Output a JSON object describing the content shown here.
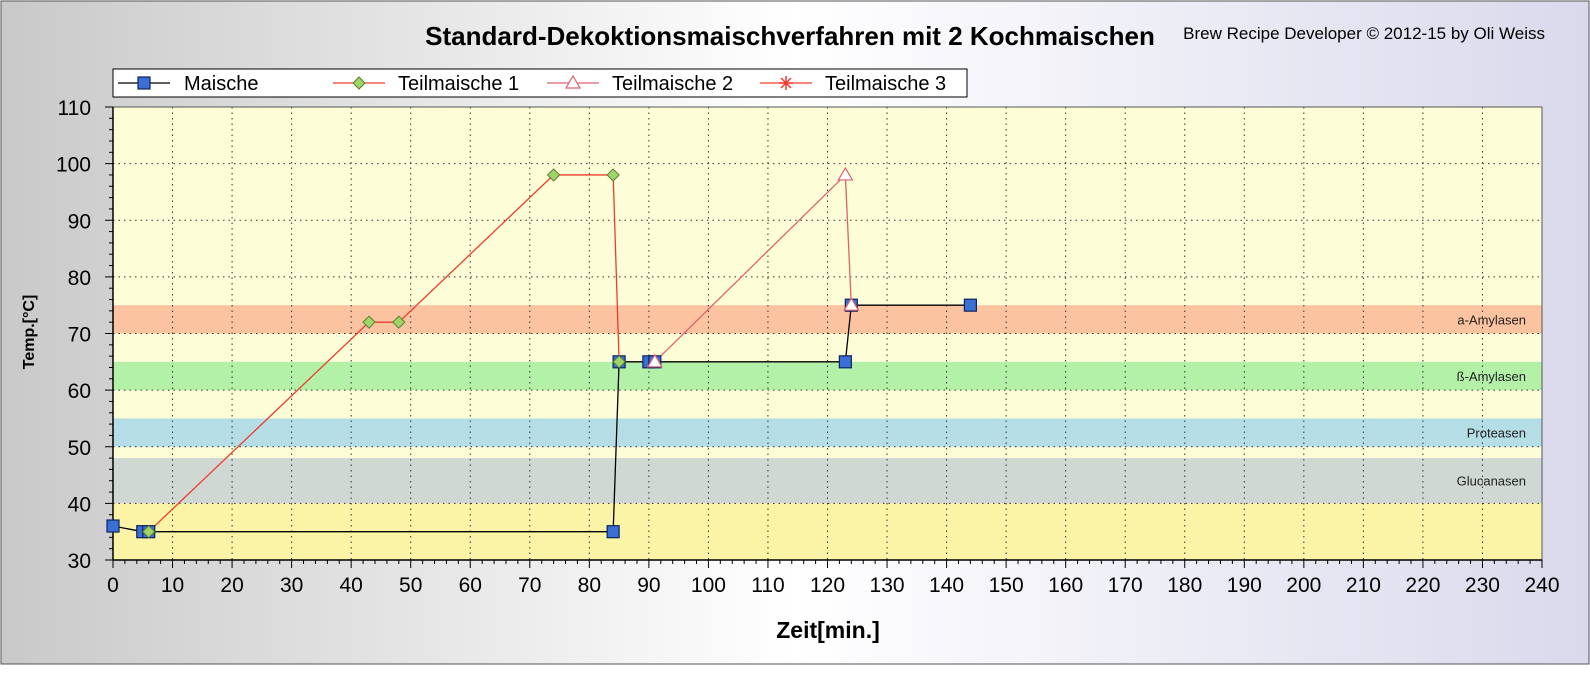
{
  "chart_data": {
    "type": "line",
    "title": "Standard-Dekoktionsmaischverfahren mit 2 Kochmaischen",
    "credit": "Brew Recipe Developer © 2012-15 by Oli Weiss",
    "xlabel": "Zeit[min.]",
    "ylabel": "Temp.[°C]",
    "xlim": [
      0,
      240
    ],
    "ylim": [
      30,
      110
    ],
    "xticks": [
      0,
      10,
      20,
      30,
      40,
      50,
      60,
      70,
      80,
      90,
      100,
      110,
      120,
      130,
      140,
      150,
      160,
      170,
      180,
      190,
      200,
      210,
      220,
      230,
      240
    ],
    "yticks": [
      30,
      40,
      50,
      60,
      70,
      80,
      90,
      100,
      110
    ],
    "grid": true,
    "legend_position": "top-left",
    "bands": [
      {
        "label": "",
        "from": 30,
        "to": 40,
        "color": "#fbf3a6"
      },
      {
        "label": "Glucanasen",
        "from": 40,
        "to": 48,
        "color": "#cfd8d3"
      },
      {
        "label": "Proteasen",
        "from": 50,
        "to": 55,
        "color": "#b4dde6"
      },
      {
        "label": "ß-Amylasen",
        "from": 60,
        "to": 65,
        "color": "#b3f0a8"
      },
      {
        "label": "a-Amylasen",
        "from": 70,
        "to": 75,
        "color": "#fbc3a0"
      }
    ],
    "series": [
      {
        "name": "Maische",
        "color": "#000000",
        "marker": "square",
        "x": [
          0,
          5,
          6,
          84,
          85,
          90,
          91,
          123,
          124,
          144
        ],
        "y": [
          36,
          35,
          35,
          35,
          65,
          65,
          65,
          65,
          75,
          75
        ]
      },
      {
        "name": "Teilmaische 1",
        "color": "#f03c2e",
        "marker": "diamond",
        "x": [
          6,
          43,
          48,
          74,
          84,
          85
        ],
        "y": [
          35,
          72,
          72,
          98,
          98,
          65
        ]
      },
      {
        "name": "Teilmaische 2",
        "color": "#e06070",
        "marker": "triangle",
        "x": [
          91,
          123,
          124
        ],
        "y": [
          65,
          98,
          75
        ]
      },
      {
        "name": "Teilmaische 3",
        "color": "#f03c2e",
        "marker": "asterisk",
        "x": [],
        "y": []
      }
    ]
  }
}
